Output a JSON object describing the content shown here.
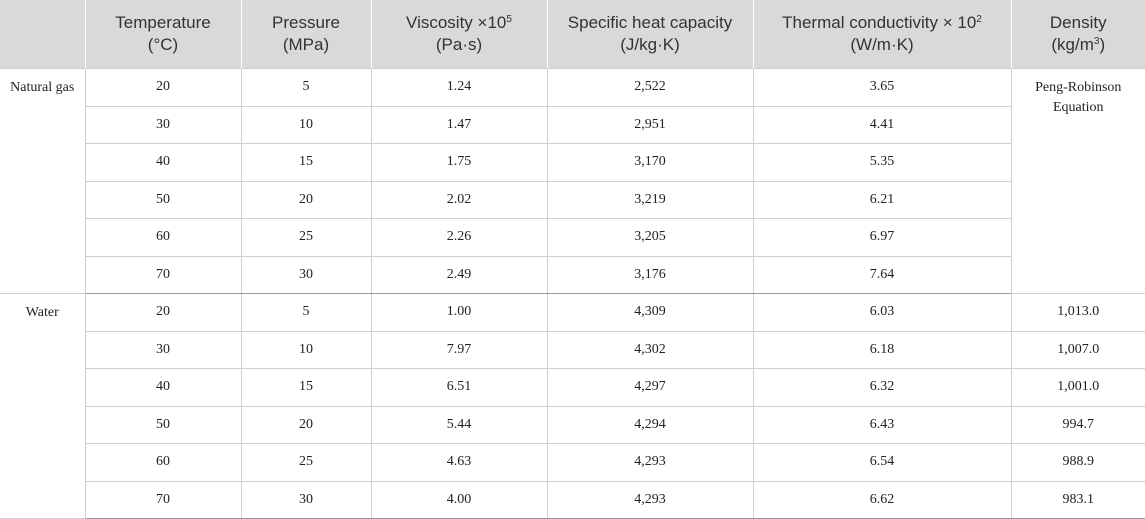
{
  "headers": [
    {
      "name": "",
      "unit": "",
      "sup": ""
    },
    {
      "name": "Temperature",
      "unit": "(°C)",
      "sup": ""
    },
    {
      "name": "Pressure",
      "unit": "(MPa)",
      "sup": ""
    },
    {
      "name": "Viscosity ×10",
      "sup": "5",
      "unit": "(Pa·s)"
    },
    {
      "name": "Specific heat capacity",
      "unit": "(J/kg·K)",
      "sup": ""
    },
    {
      "name": "Thermal conductivity × 10",
      "sup": "2",
      "unit": "(W/m·K)"
    },
    {
      "name": "Density",
      "unit": "(kg/m",
      "unit_sup": "3",
      "unit_end": ")"
    }
  ],
  "groups": [
    {
      "label": "Natural gas",
      "density_note": "Peng-Robinson Equation",
      "rows": [
        {
          "temperature": "20",
          "pressure": "5",
          "viscosity": "1.24",
          "heat_capacity": "2,522",
          "conductivity": "3.65"
        },
        {
          "temperature": "30",
          "pressure": "10",
          "viscosity": "1.47",
          "heat_capacity": "2,951",
          "conductivity": "4.41"
        },
        {
          "temperature": "40",
          "pressure": "15",
          "viscosity": "1.75",
          "heat_capacity": "3,170",
          "conductivity": "5.35"
        },
        {
          "temperature": "50",
          "pressure": "20",
          "viscosity": "2.02",
          "heat_capacity": "3,219",
          "conductivity": "6.21"
        },
        {
          "temperature": "60",
          "pressure": "25",
          "viscosity": "2.26",
          "heat_capacity": "3,205",
          "conductivity": "6.97"
        },
        {
          "temperature": "70",
          "pressure": "30",
          "viscosity": "2.49",
          "heat_capacity": "3,176",
          "conductivity": "7.64"
        }
      ]
    },
    {
      "label": "Water",
      "rows": [
        {
          "temperature": "20",
          "pressure": "5",
          "viscosity": "1.00",
          "heat_capacity": "4,309",
          "conductivity": "6.03",
          "density": "1,013.0"
        },
        {
          "temperature": "30",
          "pressure": "10",
          "viscosity": "7.97",
          "heat_capacity": "4,302",
          "conductivity": "6.18",
          "density": "1,007.0"
        },
        {
          "temperature": "40",
          "pressure": "15",
          "viscosity": "6.51",
          "heat_capacity": "4,297",
          "conductivity": "6.32",
          "density": "1,001.0"
        },
        {
          "temperature": "50",
          "pressure": "20",
          "viscosity": "5.44",
          "heat_capacity": "4,294",
          "conductivity": "6.43",
          "density": "994.7"
        },
        {
          "temperature": "60",
          "pressure": "25",
          "viscosity": "4.63",
          "heat_capacity": "4,293",
          "conductivity": "6.54",
          "density": "988.9"
        },
        {
          "temperature": "70",
          "pressure": "30",
          "viscosity": "4.00",
          "heat_capacity": "4,293",
          "conductivity": "6.62",
          "density": "983.1"
        }
      ]
    }
  ]
}
